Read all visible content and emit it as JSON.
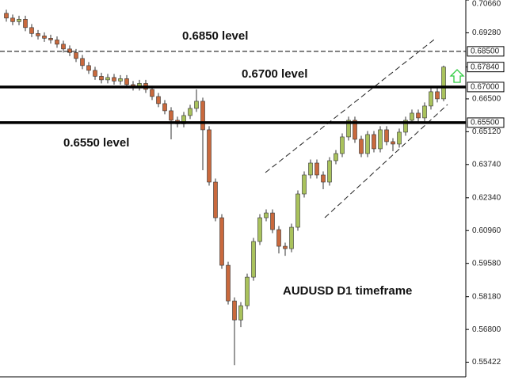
{
  "chart_data": {
    "type": "candlestick",
    "title": "AUDUSD D1 timeframe",
    "up_color": "#a9c25c",
    "down_color": "#c9693d",
    "outline_color": "#333333",
    "ylim": [
      0.5484,
      0.7066
    ],
    "yticks": [
      {
        "value": 0.7066,
        "label": "0.70660"
      },
      {
        "value": 0.6928,
        "label": "0.69280"
      },
      {
        "value": 0.665,
        "label": "0.66500"
      },
      {
        "value": 0.6512,
        "label": "0.65120"
      },
      {
        "value": 0.6374,
        "label": "0.63740"
      },
      {
        "value": 0.6234,
        "label": "0.62340"
      },
      {
        "value": 0.6096,
        "label": "0.60960"
      },
      {
        "value": 0.5958,
        "label": "0.59580"
      },
      {
        "value": 0.5818,
        "label": "0.58180"
      },
      {
        "value": 0.568,
        "label": "0.56800"
      },
      {
        "value": 0.55422,
        "label": "0.55422"
      }
    ],
    "levels": [
      {
        "value": 0.685,
        "label": "0.68500",
        "text": "0.6850 level",
        "style": "dashed"
      },
      {
        "value": 0.67,
        "label": "0.67000",
        "text": "0.6700 level",
        "style": "thick"
      },
      {
        "value": 0.655,
        "label": "0.65500",
        "text": "0.6550 level",
        "style": "thick"
      }
    ],
    "last_price": {
      "value": 0.6784,
      "label": "0.67840"
    },
    "open": [
      0.701,
      0.699,
      0.6975,
      0.6985,
      0.695,
      0.6925,
      0.6915,
      0.6905,
      0.6898,
      0.688,
      0.686,
      0.6845,
      0.682,
      0.679,
      0.677,
      0.6745,
      0.673,
      0.674,
      0.6725,
      0.6735,
      0.671,
      0.67,
      0.6715,
      0.669,
      0.666,
      0.663,
      0.66,
      0.656,
      0.6545,
      0.658,
      0.661,
      0.664,
      0.652,
      0.63,
      0.615,
      0.595,
      0.58,
      0.572,
      0.578,
      0.59,
      0.605,
      0.615,
      0.617,
      0.61,
      0.603,
      0.602,
      0.611,
      0.625,
      0.633,
      0.638,
      0.633,
      0.63,
      0.639,
      0.642,
      0.649,
      0.656,
      0.648,
      0.642,
      0.65,
      0.644,
      0.652,
      0.647,
      0.646,
      0.651,
      0.656,
      0.659,
      0.657,
      0.662,
      0.668,
      0.665
    ],
    "high": [
      0.7025,
      0.7005,
      0.7,
      0.7,
      0.6965,
      0.694,
      0.693,
      0.692,
      0.6913,
      0.6895,
      0.6875,
      0.686,
      0.6835,
      0.6805,
      0.6785,
      0.676,
      0.6755,
      0.6755,
      0.675,
      0.675,
      0.6725,
      0.673,
      0.673,
      0.6705,
      0.6675,
      0.6645,
      0.6615,
      0.6575,
      0.6595,
      0.6625,
      0.669,
      0.6655,
      0.6535,
      0.6315,
      0.6165,
      0.5965,
      0.5815,
      0.5795,
      0.5915,
      0.6065,
      0.6165,
      0.6185,
      0.6185,
      0.6115,
      0.6045,
      0.6125,
      0.6265,
      0.6345,
      0.6395,
      0.6395,
      0.6345,
      0.6405,
      0.6435,
      0.6505,
      0.6575,
      0.6575,
      0.6495,
      0.6515,
      0.6515,
      0.6535,
      0.6535,
      0.6485,
      0.6525,
      0.6575,
      0.6605,
      0.6605,
      0.6635,
      0.6695,
      0.6695,
      0.679
    ],
    "low": [
      0.6975,
      0.696,
      0.696,
      0.6935,
      0.691,
      0.69,
      0.689,
      0.6883,
      0.6865,
      0.6845,
      0.683,
      0.6805,
      0.6775,
      0.6755,
      0.673,
      0.6715,
      0.6715,
      0.671,
      0.671,
      0.6695,
      0.6685,
      0.6685,
      0.6675,
      0.6645,
      0.6615,
      0.6585,
      0.648,
      0.653,
      0.653,
      0.6565,
      0.6595,
      0.635,
      0.6285,
      0.6135,
      0.5935,
      0.5785,
      0.553,
      0.569,
      0.5765,
      0.5885,
      0.6035,
      0.6135,
      0.6085,
      0.6,
      0.599,
      0.6005,
      0.6095,
      0.6235,
      0.6315,
      0.6315,
      0.627,
      0.6285,
      0.6375,
      0.6405,
      0.6475,
      0.6465,
      0.6405,
      0.6405,
      0.6425,
      0.6425,
      0.6455,
      0.643,
      0.6445,
      0.6495,
      0.6545,
      0.6555,
      0.6555,
      0.6605,
      0.6635,
      0.664
    ],
    "close": [
      0.699,
      0.6975,
      0.6985,
      0.695,
      0.6925,
      0.6915,
      0.6905,
      0.6898,
      0.688,
      0.686,
      0.6845,
      0.682,
      0.679,
      0.677,
      0.6745,
      0.673,
      0.674,
      0.6725,
      0.6735,
      0.671,
      0.67,
      0.6715,
      0.669,
      0.666,
      0.663,
      0.66,
      0.656,
      0.6545,
      0.658,
      0.661,
      0.664,
      0.652,
      0.63,
      0.615,
      0.595,
      0.58,
      0.572,
      0.578,
      0.59,
      0.605,
      0.615,
      0.617,
      0.61,
      0.603,
      0.602,
      0.611,
      0.625,
      0.633,
      0.638,
      0.633,
      0.63,
      0.639,
      0.642,
      0.649,
      0.656,
      0.648,
      0.642,
      0.65,
      0.644,
      0.652,
      0.647,
      0.646,
      0.651,
      0.656,
      0.659,
      0.657,
      0.662,
      0.668,
      0.665,
      0.6784
    ]
  }
}
